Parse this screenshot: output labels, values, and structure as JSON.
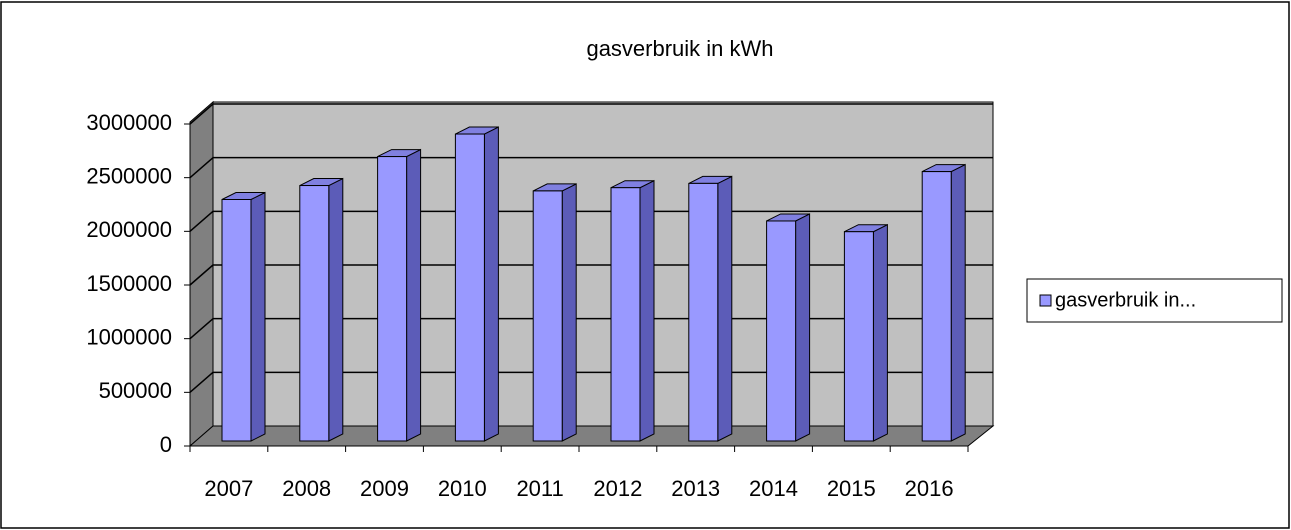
{
  "chart_data": {
    "type": "bar3d",
    "title": "gasverbruik in kWh",
    "categories": [
      "2007",
      "2008",
      "2009",
      "2010",
      "2011",
      "2012",
      "2013",
      "2014",
      "2015",
      "2016"
    ],
    "series": [
      {
        "name": "gasverbruik in...",
        "color": "#9999ff",
        "values": [
          2250000,
          2380000,
          2650000,
          2860000,
          2330000,
          2360000,
          2400000,
          2050000,
          1950000,
          2510000
        ]
      }
    ],
    "ylim": [
      0,
      3000000
    ],
    "yticks": [
      0,
      500000,
      1000000,
      1500000,
      2000000,
      2500000,
      3000000
    ],
    "grid": true,
    "legend": "right"
  }
}
